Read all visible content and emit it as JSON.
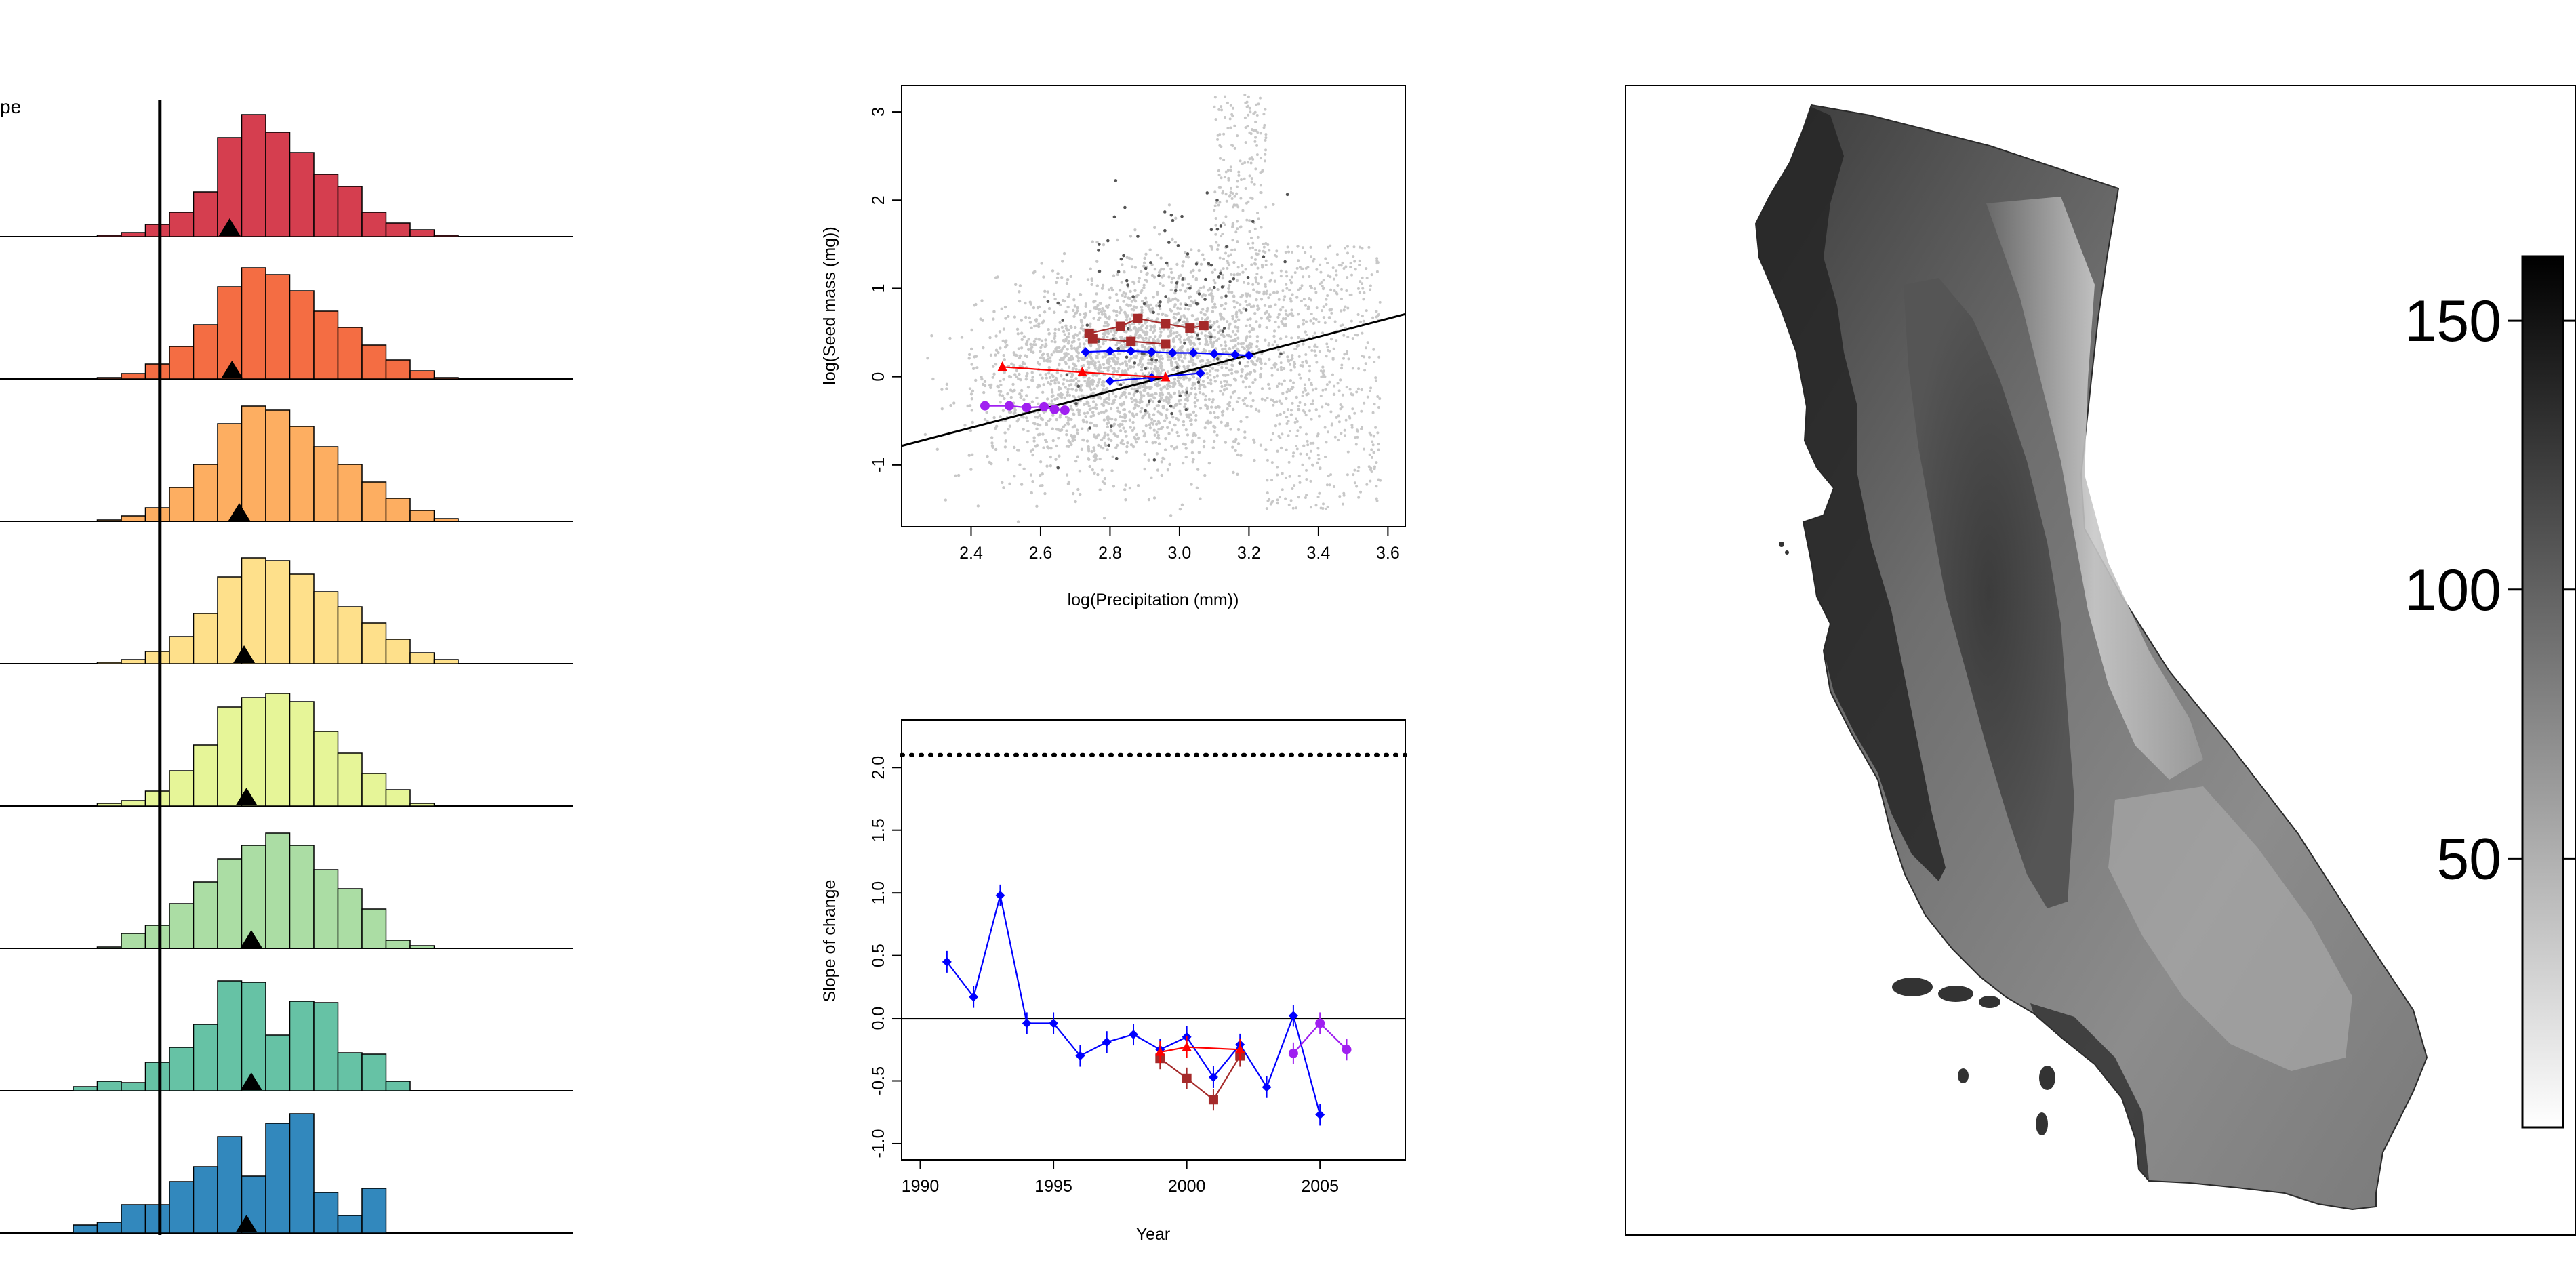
{
  "colors": {
    "hist_fills": [
      "#d53e4f",
      "#f46d43",
      "#fdae61",
      "#fee08b",
      "#e6f598",
      "#abdda4",
      "#66c2a5",
      "#3288bd"
    ],
    "cloud": "#c8c8c8",
    "dark_points": "#555555",
    "series_blue": "#0000ff",
    "series_red": "#ff0000",
    "series_darkred": "#a52a2a",
    "series_purple": "#a020f0"
  },
  "hist_panel": {
    "legend_fragment": "pe",
    "rows": [
      {
        "name": "row-1",
        "counts": [
          0,
          0.01,
          0.03,
          0.09,
          0.18,
          0.33,
          0.73,
          0.9,
          0.77,
          0.62,
          0.46,
          0.37,
          0.18,
          0.1,
          0.05,
          0.01,
          0
        ],
        "mean_bin": 6.0
      },
      {
        "name": "row-2",
        "counts": [
          0,
          0.01,
          0.04,
          0.11,
          0.24,
          0.4,
          0.68,
          0.82,
          0.77,
          0.65,
          0.5,
          0.38,
          0.25,
          0.14,
          0.06,
          0.01,
          0
        ],
        "mean_bin": 6.1
      },
      {
        "name": "row-3",
        "counts": [
          0,
          0.01,
          0.04,
          0.1,
          0.25,
          0.42,
          0.72,
          0.85,
          0.82,
          0.7,
          0.55,
          0.42,
          0.29,
          0.17,
          0.08,
          0.02,
          0
        ],
        "mean_bin": 6.4
      },
      {
        "name": "row-4",
        "counts": [
          0,
          0.01,
          0.03,
          0.09,
          0.2,
          0.37,
          0.64,
          0.78,
          0.76,
          0.66,
          0.53,
          0.42,
          0.3,
          0.18,
          0.08,
          0.03,
          0
        ],
        "mean_bin": 6.6
      },
      {
        "name": "row-5",
        "counts": [
          0,
          0.02,
          0.04,
          0.11,
          0.26,
          0.45,
          0.73,
          0.8,
          0.83,
          0.77,
          0.55,
          0.39,
          0.24,
          0.12,
          0.02,
          0,
          0
        ],
        "mean_bin": 6.7
      },
      {
        "name": "row-6",
        "counts": [
          0,
          0.01,
          0.11,
          0.17,
          0.33,
          0.49,
          0.66,
          0.76,
          0.85,
          0.76,
          0.58,
          0.44,
          0.29,
          0.06,
          0.02,
          0,
          0
        ],
        "mean_bin": 6.9
      },
      {
        "name": "row-7",
        "counts": [
          0.03,
          0.07,
          0.06,
          0.21,
          0.32,
          0.49,
          0.81,
          0.8,
          0.41,
          0.66,
          0.65,
          0.28,
          0.27,
          0.07,
          0,
          0,
          0
        ],
        "mean_bin": 6.9
      },
      {
        "name": "row-8",
        "counts": [
          0.06,
          0.08,
          0.21,
          0.21,
          0.38,
          0.49,
          0.71,
          0.42,
          0.81,
          0.88,
          0.3,
          0.13,
          0.33,
          0,
          0,
          0,
          0
        ],
        "mean_bin": 6.7
      }
    ]
  },
  "scatter_panel": {
    "chart_data": {
      "type": "scatter",
      "xlabel": "log(Precipitation (mm))",
      "ylabel": "log(Seed mass (mg))",
      "xlim": [
        2.2,
        3.65
      ],
      "ylim": [
        -1.7,
        3.3
      ],
      "xticks": [
        "2.4",
        "2.6",
        "2.8",
        "3.0",
        "3.2",
        "3.4",
        "3.6"
      ],
      "yticks": [
        "-1",
        "0",
        "1",
        "2",
        "3"
      ],
      "regression_line": {
        "intercept": -3.05,
        "slope": 1.03
      },
      "series": [
        {
          "name": "blue-diamond",
          "color": "#0000ff",
          "marker": "diamond",
          "segments": [
            [
              [
                2.73,
                0.28
              ],
              [
                2.8,
                0.29
              ],
              [
                2.86,
                0.29
              ],
              [
                2.92,
                0.28
              ],
              [
                2.98,
                0.27
              ],
              [
                3.04,
                0.27
              ],
              [
                3.1,
                0.26
              ],
              [
                3.16,
                0.25
              ],
              [
                3.2,
                0.24
              ]
            ],
            [
              [
                2.8,
                -0.05
              ],
              [
                2.92,
                -0.01
              ],
              [
                3.06,
                0.04
              ]
            ]
          ]
        },
        {
          "name": "darkred-square",
          "color": "#a52a2a",
          "marker": "square",
          "segments": [
            [
              [
                2.74,
                0.49
              ],
              [
                2.83,
                0.57
              ],
              [
                2.88,
                0.66
              ],
              [
                2.96,
                0.6
              ],
              [
                3.03,
                0.55
              ],
              [
                3.07,
                0.58
              ]
            ],
            [
              [
                2.75,
                0.43
              ],
              [
                2.86,
                0.4
              ],
              [
                2.96,
                0.37
              ]
            ]
          ]
        },
        {
          "name": "red-triangle",
          "color": "#ff0000",
          "marker": "triangle",
          "segments": [
            [
              [
                2.49,
                0.11
              ],
              [
                2.72,
                0.05
              ],
              [
                2.96,
                -0.01
              ]
            ]
          ]
        },
        {
          "name": "purple-circle",
          "color": "#a020f0",
          "marker": "circle",
          "segments": [
            [
              [
                2.44,
                -0.33
              ],
              [
                2.51,
                -0.33
              ],
              [
                2.56,
                -0.35
              ],
              [
                2.61,
                -0.34
              ],
              [
                2.64,
                -0.37
              ],
              [
                2.67,
                -0.38
              ]
            ]
          ]
        }
      ]
    }
  },
  "slope_panel": {
    "chart_data": {
      "type": "line",
      "xlabel": "Year",
      "ylabel": "Slope of change",
      "xlim": [
        1989.3,
        2008.2
      ],
      "ylim": [
        -1.13,
        2.38
      ],
      "xticks": [
        "1990",
        "1995",
        "2000",
        "2005"
      ],
      "yticks": [
        "-1.0",
        "-0.5",
        "0.0",
        "0.5",
        "1.0",
        "1.5",
        "2.0"
      ],
      "reference_dotted_y": 2.1,
      "reference_solid_y": 0,
      "series": [
        {
          "name": "blue-diamond",
          "color": "#0000ff",
          "marker": "diamond",
          "points": [
            [
              1991,
              0.45
            ],
            [
              1992,
              0.17
            ],
            [
              1993,
              0.98
            ],
            [
              1994,
              -0.04
            ],
            [
              1995,
              -0.04
            ],
            [
              1996,
              -0.3
            ],
            [
              1997,
              -0.19
            ],
            [
              1998,
              -0.13
            ],
            [
              1999,
              -0.25
            ],
            [
              2000,
              -0.15
            ],
            [
              2001,
              -0.47
            ],
            [
              2002,
              -0.21
            ],
            [
              2003,
              -0.55
            ],
            [
              2004,
              0.02
            ],
            [
              2005,
              -0.77
            ]
          ]
        },
        {
          "name": "darkred-square",
          "color": "#a52a2a",
          "marker": "square",
          "points": [
            [
              1999,
              -0.32
            ],
            [
              2000,
              -0.48
            ],
            [
              2001,
              -0.65
            ],
            [
              2002,
              -0.3
            ]
          ]
        },
        {
          "name": "red-triangle",
          "color": "#ff0000",
          "marker": "triangle",
          "points": [
            [
              1999,
              -0.27
            ],
            [
              2000,
              -0.23
            ],
            [
              2002,
              -0.25
            ]
          ]
        },
        {
          "name": "purple-circle",
          "color": "#a020f0",
          "marker": "circle",
          "points": [
            [
              2004,
              -0.28
            ],
            [
              2005,
              -0.04
            ],
            [
              2006,
              -0.25
            ]
          ]
        }
      ]
    }
  },
  "map_panel": {
    "colorbar_ticks": [
      "150",
      "100",
      "50"
    ],
    "colorbar_values": [
      150,
      100,
      50
    ],
    "colorbar_range": [
      0,
      162
    ]
  }
}
